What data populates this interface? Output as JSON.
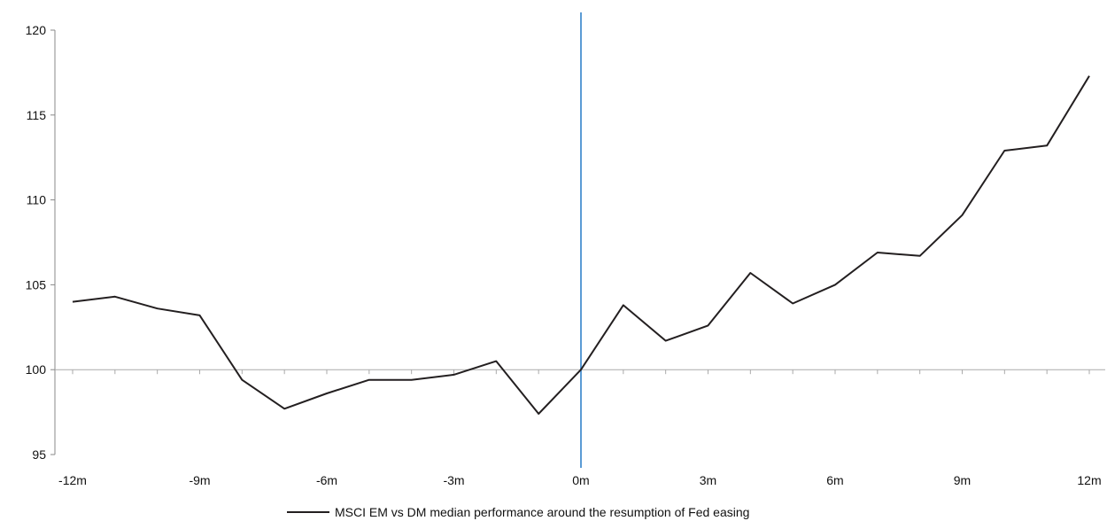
{
  "chart_data": {
    "type": "line",
    "title": "",
    "xlabel": "",
    "ylabel": "",
    "x": [
      -12,
      -11,
      -10,
      -9,
      -8,
      -7,
      -6,
      -5,
      -4,
      -3,
      -2,
      -1,
      0,
      1,
      2,
      3,
      4,
      5,
      6,
      7,
      8,
      9,
      10,
      11,
      12
    ],
    "xtick_values": [
      -12,
      -9,
      -6,
      -3,
      0,
      3,
      6,
      9,
      12
    ],
    "xtick_labels": [
      "-12m",
      "-9m",
      "-6m",
      "-3m",
      "0m",
      "3m",
      "6m",
      "9m",
      "12m"
    ],
    "ytick_values": [
      95,
      100,
      105,
      110,
      115,
      120
    ],
    "ytick_labels": [
      "95",
      "100",
      "105",
      "110",
      "115",
      "120"
    ],
    "xlim": [
      -12,
      12
    ],
    "ylim": [
      95,
      120
    ],
    "series": [
      {
        "name": "MSCI EM vs DM median performance around the resumption of Fed easing",
        "color": "#231f20",
        "values": [
          104.0,
          104.3,
          103.6,
          103.2,
          99.4,
          97.7,
          98.6,
          99.4,
          99.4,
          99.7,
          100.5,
          97.4,
          100.0,
          103.8,
          101.7,
          102.6,
          105.7,
          103.9,
          105.0,
          106.9,
          106.7,
          109.1,
          112.9,
          113.2,
          117.3
        ]
      }
    ],
    "reference_line": {
      "x": 0,
      "color": "#5b9bd5"
    },
    "baseline_y": 100,
    "grid": false,
    "legend_position": "bottom-center"
  }
}
